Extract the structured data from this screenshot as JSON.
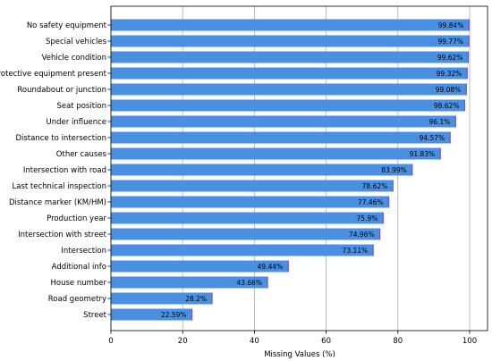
{
  "chart_data": {
    "type": "bar",
    "orientation": "horizontal",
    "categories": [
      "No safety equipment",
      "Special vehicles",
      "Vehicle condition",
      "Protective equipment present",
      "Roundabout or junction",
      "Seat position",
      "Under influence",
      "Distance to intersection",
      "Other causes",
      "Intersection with road",
      "Last technical inspection",
      "Distance marker (KM/HM)",
      "Production year",
      "Intersection with street",
      "Intersection",
      "Additional info",
      "House number",
      "Road geometry",
      "Street"
    ],
    "values": [
      99.84,
      99.77,
      99.62,
      99.32,
      99.08,
      98.62,
      96.1,
      94.57,
      91.83,
      83.99,
      78.62,
      77.46,
      75.9,
      74.96,
      73.11,
      49.44,
      43.66,
      28.2,
      22.59
    ],
    "value_labels": [
      "99.84%",
      "99.77%",
      "99.62%",
      "99.32%",
      "99.08%",
      "98.62%",
      "96.1%",
      "94.57%",
      "91.83%",
      "83.99%",
      "78.62%",
      "77.46%",
      "75.9%",
      "74.96%",
      "73.11%",
      "49.44%",
      "43.66%",
      "28.2%",
      "22.59%"
    ],
    "xlabel": "Missing Values (%)",
    "ylabel": "",
    "xlim": [
      0,
      100
    ],
    "xticks": [
      0,
      20,
      40,
      60,
      80,
      100
    ],
    "xtick_labels": [
      "0",
      "20",
      "40",
      "60",
      "80",
      "100"
    ],
    "grid": "vertical",
    "bar_color": "#4a90e2",
    "bar_edge_color": "#7a4fd8"
  }
}
